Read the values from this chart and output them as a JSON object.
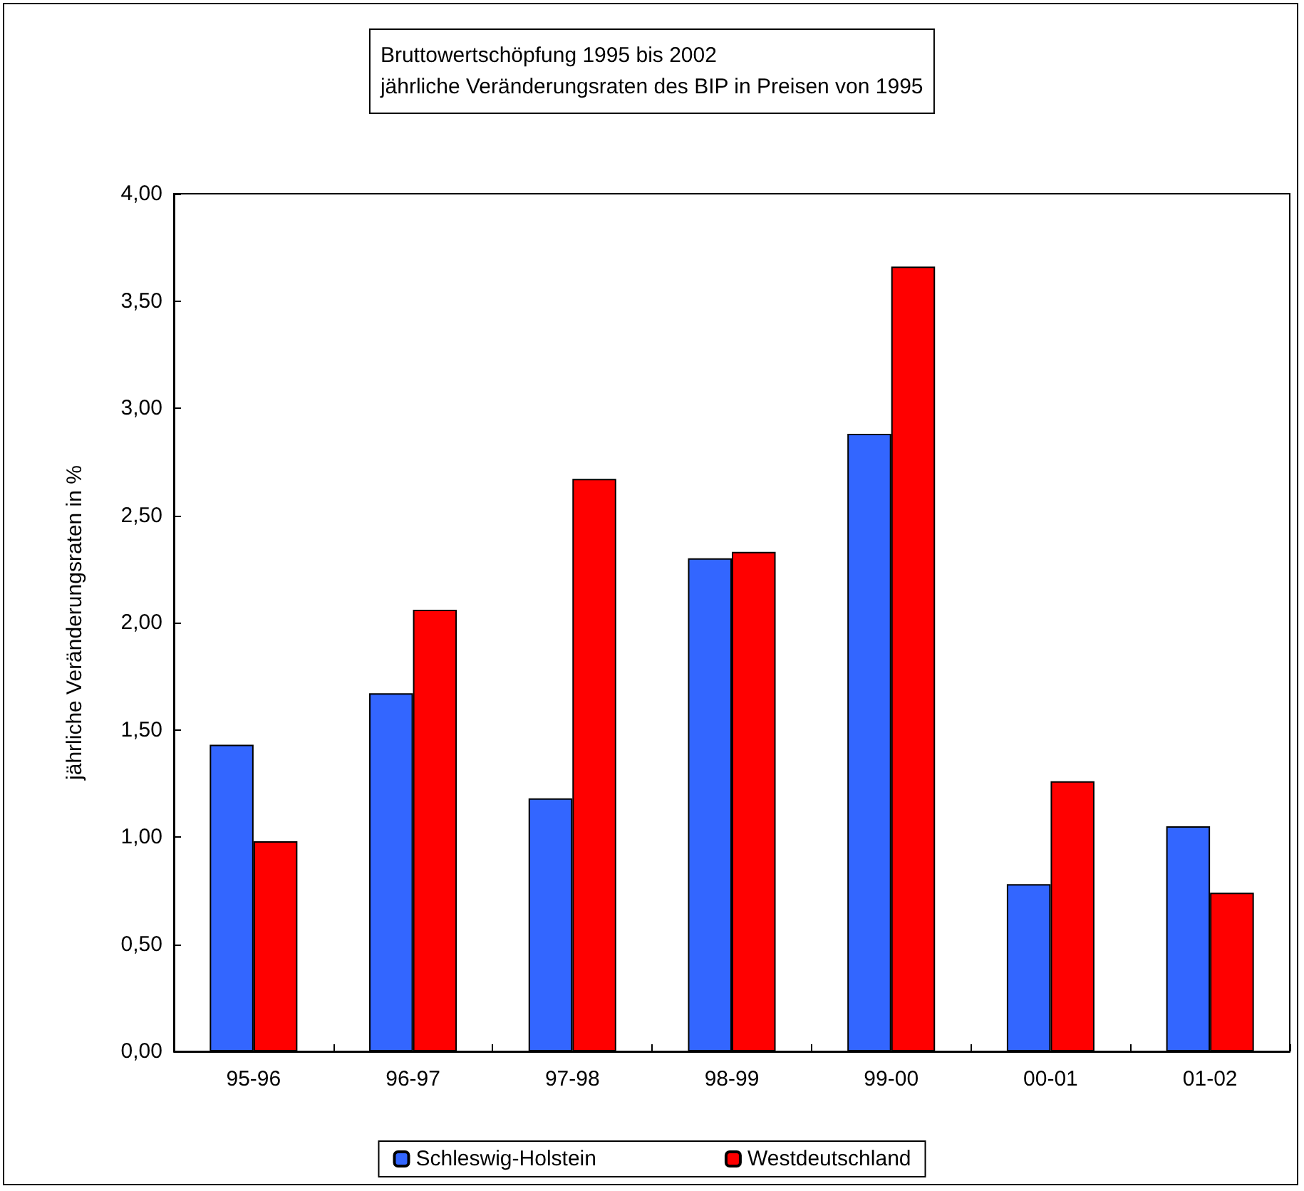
{
  "chart_data": {
    "type": "bar",
    "title": "Bruttowertschöpfung 1995 bis 2002\njährliche Veränderungsraten des BIP in Preisen von 1995",
    "ylabel": "jährliche Veränderungsraten in %",
    "categories": [
      "95-96",
      "96-97",
      "97-98",
      "98-99",
      "99-00",
      "00-01",
      "01-02"
    ],
    "series": [
      {
        "name": "Schleswig-Holstein",
        "color": "#3366ff",
        "values": [
          1.43,
          1.67,
          1.18,
          2.3,
          2.88,
          0.78,
          1.05
        ]
      },
      {
        "name": "Westdeutschland",
        "color": "#ff0000",
        "values": [
          0.98,
          2.06,
          2.67,
          2.33,
          3.66,
          1.26,
          0.74
        ]
      }
    ],
    "ylim": [
      0,
      4
    ],
    "yticks": [
      {
        "value": 0,
        "label": "0,00"
      },
      {
        "value": 0.5,
        "label": "0,50"
      },
      {
        "value": 1,
        "label": "1,00"
      },
      {
        "value": 1.5,
        "label": "1,50"
      },
      {
        "value": 2,
        "label": "2,00"
      },
      {
        "value": 2.5,
        "label": "2,50"
      },
      {
        "value": 3,
        "label": "3,00"
      },
      {
        "value": 3.5,
        "label": "3,50"
      },
      {
        "value": 4,
        "label": "4,00"
      }
    ],
    "grid": false,
    "legend": "bottom"
  }
}
